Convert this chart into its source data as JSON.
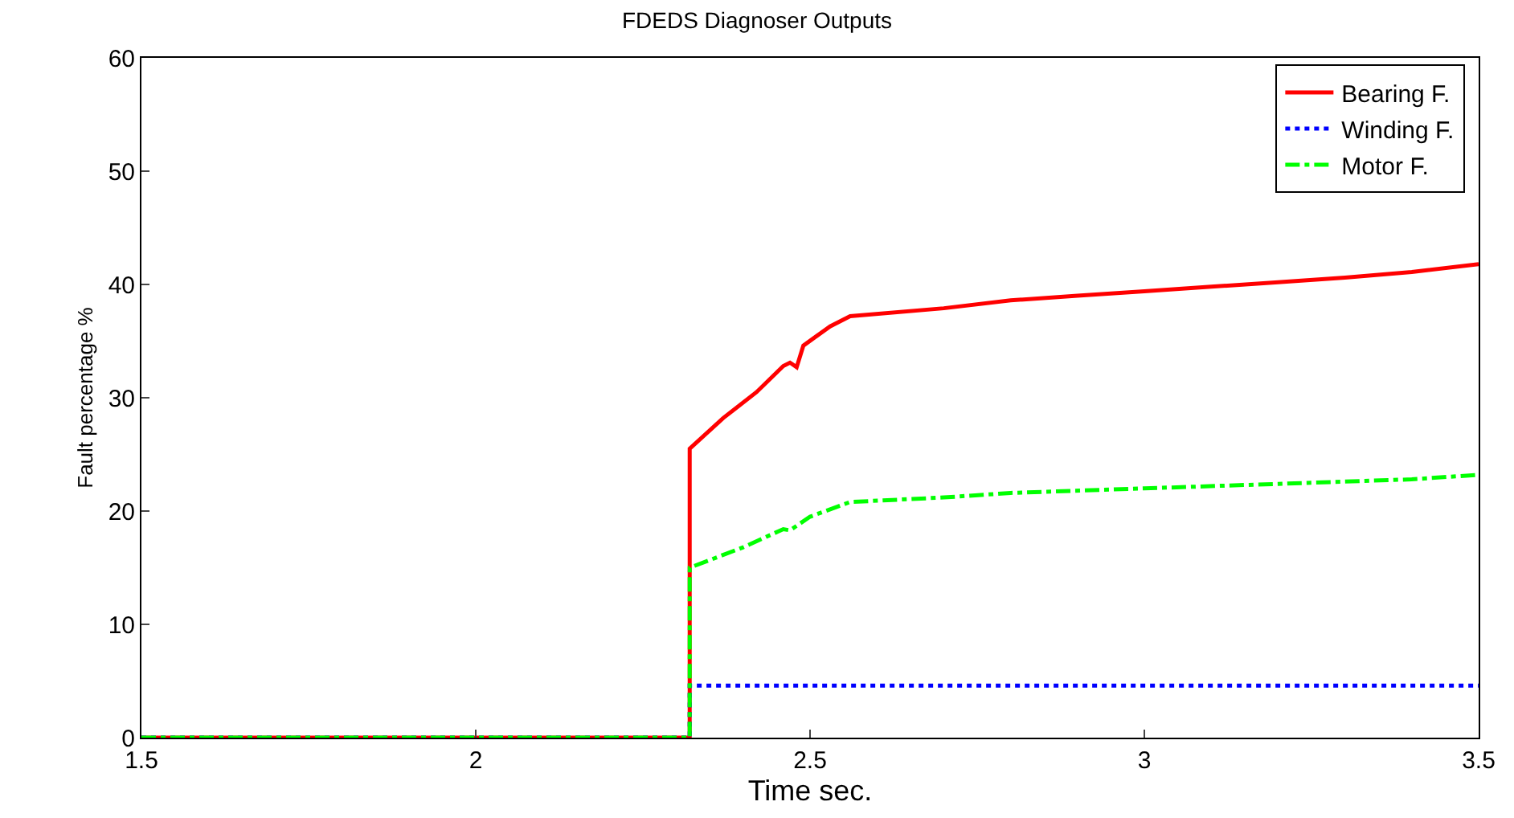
{
  "chart_data": {
    "type": "line",
    "title": "FDEDS Diagnoser Outputs",
    "xlabel": "Time sec.",
    "ylabel": "Fault percentage %",
    "xlim": [
      1.5,
      3.5
    ],
    "ylim": [
      0,
      60
    ],
    "xticks": [
      1.5,
      2,
      2.5,
      3,
      3.5
    ],
    "yticks": [
      0,
      10,
      20,
      30,
      40,
      50,
      60
    ],
    "grid": false,
    "legend": "top right",
    "series": [
      {
        "name": "Bearing F.",
        "color": "#ff0000",
        "line_style": "solid",
        "x": [
          1.5,
          2.32,
          2.32,
          2.37,
          2.42,
          2.46,
          2.47,
          2.48,
          2.49,
          2.53,
          2.56,
          2.7,
          2.8,
          2.9,
          3.0,
          3.1,
          3.2,
          3.3,
          3.4,
          3.5
        ],
        "values": [
          0,
          0,
          25.5,
          28.2,
          30.5,
          32.8,
          33.1,
          32.7,
          34.6,
          36.3,
          37.2,
          37.9,
          38.6,
          39.0,
          39.4,
          39.8,
          40.2,
          40.6,
          41.1,
          41.8
        ]
      },
      {
        "name": "Winding F.",
        "color": "#0000ff",
        "line_style": "dotted",
        "x": [
          1.5,
          2.32,
          2.32,
          3.5
        ],
        "values": [
          0,
          0,
          4.6,
          4.6
        ]
      },
      {
        "name": "Motor F.",
        "color": "#00ff00",
        "line_style": "dashdot",
        "x": [
          1.5,
          2.32,
          2.32,
          2.4,
          2.46,
          2.47,
          2.5,
          2.56,
          2.7,
          2.8,
          3.0,
          3.2,
          3.4,
          3.5
        ],
        "values": [
          0,
          0,
          15,
          16.8,
          18.4,
          18.3,
          19.5,
          20.8,
          21.2,
          21.6,
          22.0,
          22.4,
          22.8,
          23.2
        ]
      }
    ]
  }
}
